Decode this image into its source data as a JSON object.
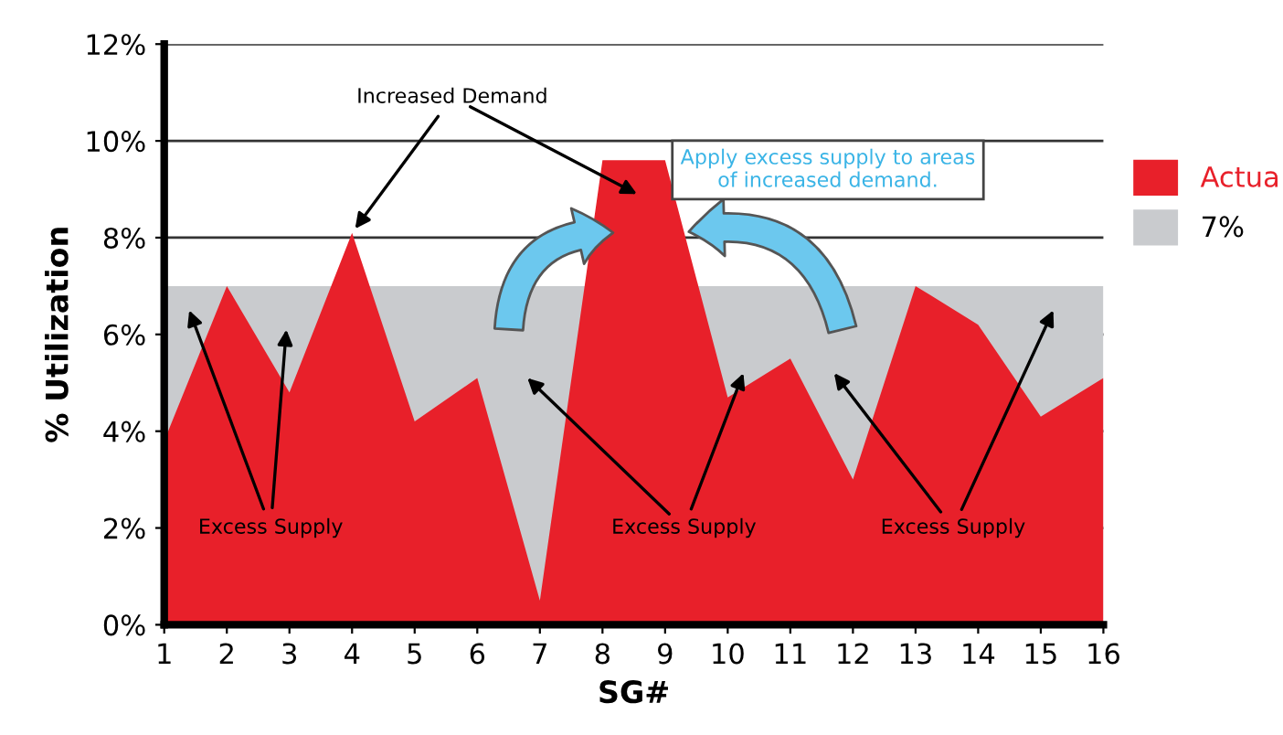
{
  "chart_data": {
    "type": "area",
    "xlabel": "SG#",
    "ylabel": "% Utilization",
    "x": [
      1,
      2,
      3,
      4,
      5,
      6,
      7,
      8,
      9,
      10,
      11,
      12,
      13,
      14,
      15,
      16
    ],
    "xlim": [
      1,
      16
    ],
    "xticks": [
      1,
      2,
      3,
      4,
      5,
      6,
      7,
      8,
      9,
      10,
      11,
      12,
      13,
      14,
      15,
      16
    ],
    "ylim": [
      0,
      12
    ],
    "yticks": [
      {
        "value": 0,
        "label": "0%"
      },
      {
        "value": 2,
        "label": "2%"
      },
      {
        "value": 4,
        "label": "4%"
      },
      {
        "value": 6,
        "label": "6%"
      },
      {
        "value": 8,
        "label": "8%"
      },
      {
        "value": 10,
        "label": "10%"
      },
      {
        "value": 12,
        "label": "12%"
      }
    ],
    "series": [
      {
        "name": "Actua",
        "color": "#e8202a",
        "values": [
          3.8,
          7.0,
          4.8,
          8.1,
          4.2,
          5.1,
          0.5,
          9.6,
          9.6,
          4.7,
          5.5,
          3.0,
          7.0,
          6.2,
          4.3,
          5.1
        ]
      }
    ],
    "bands": [
      {
        "axis": "y",
        "from": 0,
        "to": 7,
        "label": "7%",
        "color": "#c9cbce"
      }
    ],
    "grid": "y",
    "legend": "right",
    "annotations": [
      {
        "text": "Increased Demand",
        "x": 4,
        "y": 8.1
      },
      "Excess Supply",
      "Excess Supply",
      "Excess Supply",
      "Apply excess supply to areas\nof increased demand."
    ]
  }
}
